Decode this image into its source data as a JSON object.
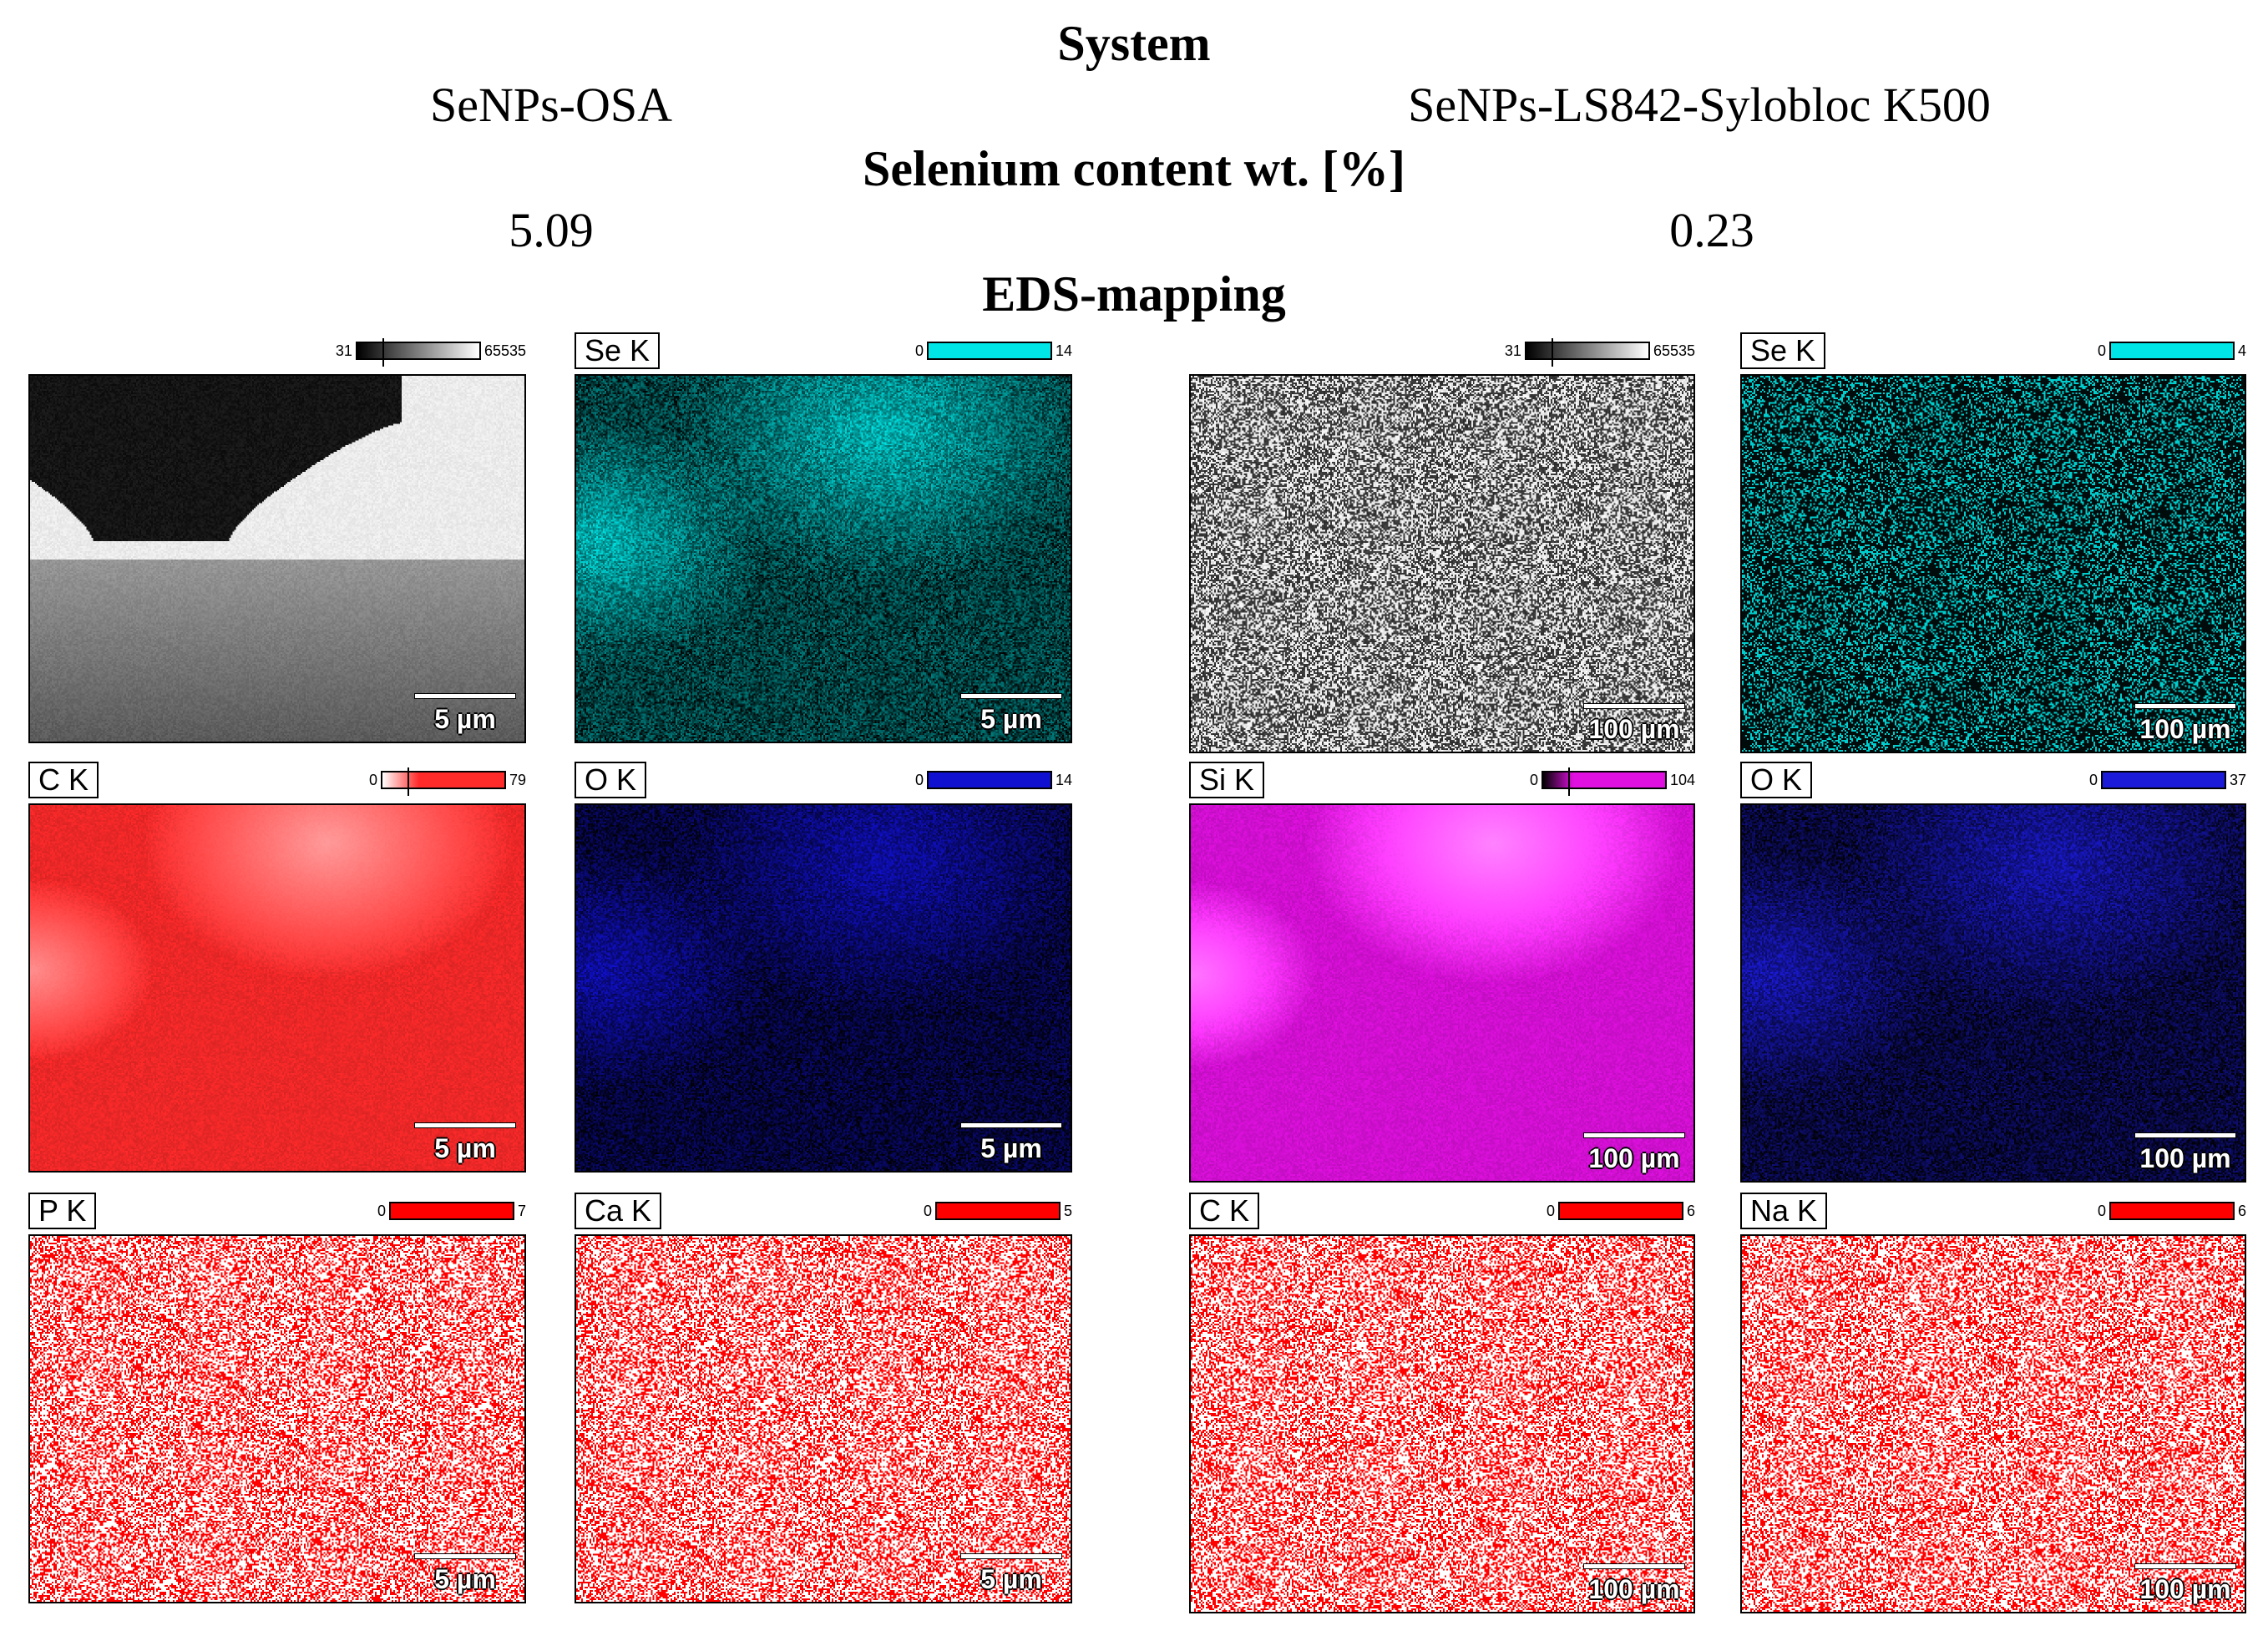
{
  "headers": {
    "system_title": "System",
    "selenium_title": "Selenium content wt. [%]",
    "eds_title": "EDS-mapping"
  },
  "systems": [
    {
      "name": "SeNPs-OSA",
      "selenium": "5.09"
    },
    {
      "name": "SeNPs-LS842-Sylobloc K500",
      "selenium": "0.23"
    }
  ],
  "panels": [
    {
      "element": "",
      "min": "31",
      "max": "65535",
      "scale": "5 µm",
      "style": "sem-left",
      "color": "#808080"
    },
    {
      "element": "Se K",
      "min": "0",
      "max": "14",
      "scale": "5 µm",
      "style": "dark",
      "color": "#00e5e5"
    },
    {
      "element": "C K",
      "min": "0",
      "max": "79",
      "scale": "5 µm",
      "style": "solid",
      "color": "#ff2a2a"
    },
    {
      "element": "O K",
      "min": "0",
      "max": "14",
      "scale": "5 µm",
      "style": "dark",
      "color": "#1010d0"
    },
    {
      "element": "P K",
      "min": "0",
      "max": "7",
      "scale": "5 µm",
      "style": "speckle",
      "color": "#ff0000"
    },
    {
      "element": "Ca K",
      "min": "0",
      "max": "5",
      "scale": "5 µm",
      "style": "speckle",
      "color": "#ff0000"
    },
    {
      "element": "",
      "min": "31",
      "max": "65535",
      "scale": "100 µm",
      "style": "sem-right",
      "color": "#808080"
    },
    {
      "element": "Se K",
      "min": "0",
      "max": "4",
      "scale": "100 µm",
      "style": "dark-speckle",
      "color": "#00e5e5"
    },
    {
      "element": "Si K",
      "min": "0",
      "max": "104",
      "scale": "100 µm",
      "style": "solid",
      "color": "#e010e0"
    },
    {
      "element": "O K",
      "min": "0",
      "max": "37",
      "scale": "100 µm",
      "style": "dark",
      "color": "#1a1ad8"
    },
    {
      "element": "C K",
      "min": "0",
      "max": "6",
      "scale": "100 µm",
      "style": "speckle",
      "color": "#ff0000"
    },
    {
      "element": "Na K",
      "min": "0",
      "max": "6",
      "scale": "100 µm",
      "style": "speckle",
      "color": "#ff0000"
    }
  ]
}
